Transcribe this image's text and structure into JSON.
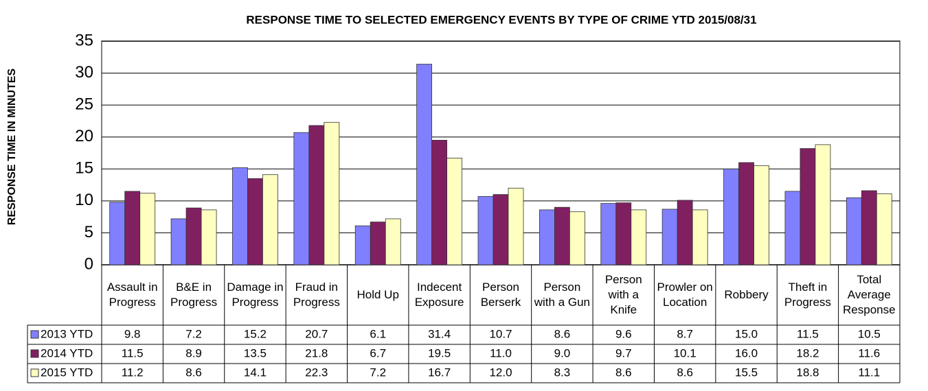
{
  "chart_data": {
    "type": "bar",
    "title": "RESPONSE TIME TO SELECTED EMERGENCY EVENTS BY TYPE OF CRIME YTD 2015/08/31",
    "y_label": "RESPONSE TIME IN MINUTES",
    "categories": [
      "Assault in Progress",
      "B&E in Progress",
      "Damage in Progress",
      "Fraud in Progress",
      "Hold Up",
      "Indecent Exposure",
      "Person Berserk",
      "Person with a Gun",
      "Person with a Knife",
      "Prowler on Location",
      "Robbery",
      "Theft in Progress",
      "Total Average Response"
    ],
    "series": [
      {
        "name": "2013 YTD",
        "color": "#8080ff",
        "values": [
          9.8,
          7.2,
          15.2,
          20.7,
          6.1,
          31.4,
          10.7,
          8.6,
          9.6,
          8.7,
          15.0,
          11.5,
          10.5
        ],
        "value_labels": [
          "9.8",
          "7.2",
          "15.2",
          "20.7",
          "6.1",
          "31.4",
          "10.7",
          "8.6",
          "9.6",
          "8.7",
          "15.0",
          "11.5",
          "10.5"
        ]
      },
      {
        "name": "2014 YTD",
        "color": "#802060",
        "values": [
          11.5,
          8.9,
          13.5,
          21.8,
          6.7,
          19.5,
          11.0,
          9.0,
          9.7,
          10.1,
          16.0,
          18.2,
          11.6
        ],
        "value_labels": [
          "11.5",
          "8.9",
          "13.5",
          "21.8",
          "6.7",
          "19.5",
          "11.0",
          "9.0",
          "9.7",
          "10.1",
          "16.0",
          "18.2",
          "11.6"
        ]
      },
      {
        "name": "2015 YTD",
        "color": "#ffffc0",
        "values": [
          11.2,
          8.6,
          14.1,
          22.3,
          7.2,
          16.7,
          12.0,
          8.3,
          8.6,
          8.6,
          15.5,
          18.8,
          11.1
        ],
        "value_labels": [
          "11.2",
          "8.6",
          "14.1",
          "22.3",
          "7.2",
          "16.7",
          "12.0",
          "8.3",
          "8.6",
          "8.6",
          "15.5",
          "18.8",
          "11.1"
        ]
      }
    ],
    "ylim": [
      0,
      35
    ],
    "yticks": [
      0,
      5,
      10,
      15,
      20,
      25,
      30,
      35
    ],
    "grid": true
  }
}
